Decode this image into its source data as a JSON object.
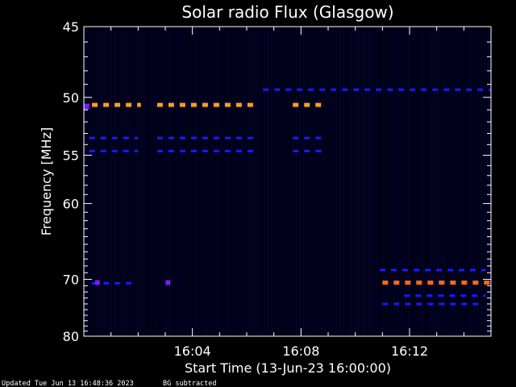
{
  "chart_data": {
    "type": "heatmap",
    "title": "Solar radio Flux (Glasgow)",
    "xlabel": "Start Time (13-Jun-23 16:00:00)",
    "ylabel": "Frequency [MHz]",
    "x_unit": "minutes after 16:00",
    "xlim": [
      0,
      15
    ],
    "ylim": [
      45,
      80
    ],
    "x_ticks": [
      {
        "value": 4,
        "label": "16:04"
      },
      {
        "value": 8,
        "label": "16:08"
      },
      {
        "value": 12,
        "label": "16:12"
      }
    ],
    "y_ticks": [
      {
        "value": 45,
        "label": "45"
      },
      {
        "value": 50,
        "label": "50"
      },
      {
        "value": 55,
        "label": "55"
      },
      {
        "value": 60,
        "label": "60"
      },
      {
        "value": 70,
        "label": "70"
      },
      {
        "value": 80,
        "label": "80"
      }
    ],
    "colors": {
      "background": "#000000",
      "plot_bg": "#000018",
      "axes": "#ffffff",
      "low": "#1a1aff",
      "mid": "#7a1aff",
      "high": "#ffa020",
      "hot": "#ff6a10"
    },
    "emission_bands": [
      {
        "freq": 50.6,
        "x_start": 0.0,
        "x_end": 0.3,
        "level": "mid"
      },
      {
        "freq": 50.6,
        "x_start": 0.3,
        "x_end": 2.1,
        "level": "high"
      },
      {
        "freq": 50.6,
        "x_start": 2.7,
        "x_end": 6.5,
        "level": "high"
      },
      {
        "freq": 50.6,
        "x_start": 7.7,
        "x_end": 8.9,
        "level": "high"
      },
      {
        "freq": 53.4,
        "x_start": 0.2,
        "x_end": 2.0,
        "level": "low"
      },
      {
        "freq": 53.4,
        "x_start": 2.7,
        "x_end": 6.5,
        "level": "low"
      },
      {
        "freq": 53.4,
        "x_start": 7.7,
        "x_end": 8.9,
        "level": "low"
      },
      {
        "freq": 54.6,
        "x_start": 0.2,
        "x_end": 2.0,
        "level": "low"
      },
      {
        "freq": 54.6,
        "x_start": 2.7,
        "x_end": 6.5,
        "level": "low"
      },
      {
        "freq": 54.6,
        "x_start": 7.7,
        "x_end": 8.9,
        "level": "low"
      },
      {
        "freq": 49.4,
        "x_start": 6.6,
        "x_end": 15.0,
        "level": "low"
      },
      {
        "freq": 68.6,
        "x_start": 10.9,
        "x_end": 14.8,
        "level": "low"
      },
      {
        "freq": 70.6,
        "x_start": 0.3,
        "x_end": 1.8,
        "level": "low"
      },
      {
        "freq": 70.5,
        "x_start": 11.0,
        "x_end": 15.0,
        "level": "hot"
      },
      {
        "freq": 72.6,
        "x_start": 11.8,
        "x_end": 14.8,
        "level": "low"
      },
      {
        "freq": 74.0,
        "x_start": 11.0,
        "x_end": 14.8,
        "level": "low"
      }
    ],
    "hotspots": [
      {
        "freq": 70.5,
        "x": 0.5,
        "level": "mid"
      },
      {
        "freq": 70.5,
        "x": 3.1,
        "level": "mid"
      },
      {
        "freq": 50.8,
        "x": 0.1,
        "level": "mid"
      }
    ]
  },
  "footer": {
    "updated": "Updated Tue Jun 13 16:48:36 2023",
    "note": "BG subtracted"
  }
}
